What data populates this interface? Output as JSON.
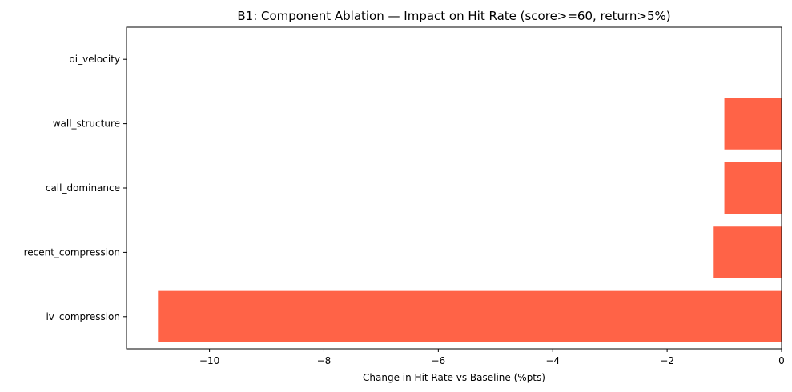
{
  "chart_data": {
    "type": "bar",
    "orientation": "horizontal",
    "title": "B1: Component Ablation — Impact on Hit Rate (score>=60, return>5%)",
    "xlabel": "Change in Hit Rate vs Baseline (%pts)",
    "ylabel": "",
    "categories": [
      "iv_compression",
      "recent_compression",
      "call_dominance",
      "wall_structure",
      "oi_velocity"
    ],
    "values": [
      -10.9,
      -1.2,
      -1.0,
      -1.0,
      0.0
    ],
    "xlim": [
      -11.45,
      0
    ],
    "xticks": [
      -10,
      -8,
      -6,
      -4,
      -2,
      0
    ],
    "xtick_labels": [
      "−10",
      "−8",
      "−6",
      "−4",
      "−2",
      "0"
    ],
    "bar_color": "#ff6347",
    "grid": false,
    "legend": "none"
  }
}
